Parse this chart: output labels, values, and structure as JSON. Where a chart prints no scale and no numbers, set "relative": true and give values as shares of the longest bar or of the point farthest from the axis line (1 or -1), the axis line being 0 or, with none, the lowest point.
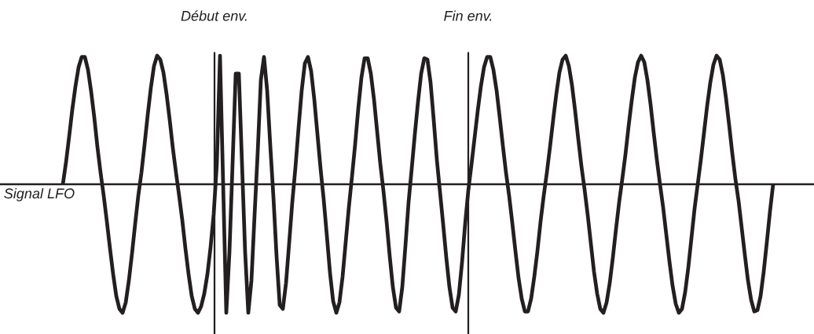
{
  "chart_data": {
    "type": "line",
    "relative": true,
    "line_style": "solid",
    "categories": [
      null,
      null,
      null,
      null,
      null,
      null,
      null,
      null,
      null,
      null,
      null,
      null,
      null,
      null,
      null,
      null,
      null,
      null,
      null,
      null,
      null,
      null,
      null,
      null,
      null,
      null,
      null,
      null,
      null,
      null,
      null,
      null,
      null,
      null,
      null,
      null,
      null,
      null,
      null,
      null,
      null,
      null,
      null,
      null,
      null,
      null,
      null,
      null,
      null,
      null,
      null,
      null,
      null,
      null,
      null,
      null,
      null,
      null,
      null,
      null,
      null,
      null,
      null,
      null,
      null,
      null,
      null,
      null,
      null,
      null,
      null,
      null,
      null,
      null,
      null,
      null,
      null,
      null,
      null,
      null,
      null,
      null,
      null,
      null,
      null,
      null,
      null,
      null,
      null,
      null,
      null,
      null,
      null,
      null,
      null,
      null,
      null,
      null,
      null,
      null,
      null,
      null,
      null,
      null,
      null,
      null,
      null,
      null,
      null,
      null,
      null,
      null,
      null,
      null,
      null,
      null,
      null,
      null,
      null,
      null,
      null,
      null,
      null,
      null,
      null,
      null,
      null,
      null,
      null,
      null,
      null,
      null,
      null,
      null,
      null,
      null,
      null,
      null,
      null,
      null,
      null,
      null,
      null,
      null,
      null,
      null,
      null,
      null,
      null,
      null,
      null,
      null,
      null,
      null,
      null,
      null,
      null,
      null,
      null,
      null,
      null,
      null,
      null,
      null,
      null,
      null,
      null,
      null,
      null,
      null,
      null,
      null,
      null,
      null,
      null,
      null,
      null,
      null,
      null,
      null,
      null,
      null,
      null,
      null,
      null,
      null,
      null,
      null,
      null,
      null,
      null,
      null,
      null,
      null,
      null,
      null,
      null,
      null,
      null,
      null,
      null,
      null,
      null,
      null,
      null,
      null,
      null,
      null,
      null,
      null,
      null,
      null,
      null,
      null,
      null,
      null,
      null,
      null,
      null,
      null,
      null,
      null,
      null,
      null,
      null,
      null,
      null
    ],
    "series": [
      {
        "name": "Signal LFO",
        "color": "#231f20",
        "values": [
          0.0,
          0.17,
          0.37,
          0.58,
          0.76,
          0.91,
          0.99,
          0.99,
          0.89,
          0.72,
          0.52,
          0.29,
          0.09,
          -0.09,
          -0.29,
          -0.5,
          -0.7,
          -0.87,
          -0.97,
          -1.0,
          -0.92,
          -0.75,
          -0.54,
          -0.31,
          -0.09,
          0.09,
          0.31,
          0.54,
          0.75,
          0.92,
          1.0,
          0.97,
          0.87,
          0.7,
          0.5,
          0.28,
          0.09,
          -0.09,
          -0.28,
          -0.5,
          -0.7,
          -0.87,
          -0.97,
          -1.0,
          -0.95,
          -0.85,
          -0.7,
          -0.49,
          -0.23,
          0.16,
          1.0,
          0.0,
          -1.0,
          -0.53,
          0.16,
          0.86,
          0.86,
          0.16,
          -0.53,
          -1.0,
          -0.75,
          -0.24,
          0.25,
          0.81,
          0.99,
          0.73,
          0.3,
          -0.1,
          -0.56,
          -0.94,
          -0.97,
          -0.77,
          -0.46,
          -0.14,
          0.13,
          0.44,
          0.73,
          0.94,
          0.99,
          0.88,
          0.66,
          0.39,
          0.12,
          -0.12,
          -0.4,
          -0.69,
          -0.91,
          -1.0,
          -0.92,
          -0.72,
          -0.45,
          -0.18,
          0.06,
          0.31,
          0.59,
          0.83,
          0.98,
          0.98,
          0.86,
          0.66,
          0.41,
          0.16,
          -0.05,
          -0.29,
          -0.56,
          -0.8,
          -0.96,
          -0.99,
          -0.8,
          -0.48,
          -0.14,
          0.12,
          0.39,
          0.64,
          0.86,
          0.98,
          0.97,
          0.79,
          0.5,
          0.19,
          -0.06,
          -0.31,
          -0.57,
          -0.8,
          -0.96,
          -0.99,
          -0.86,
          -0.61,
          -0.31,
          -0.05,
          0.15,
          0.36,
          0.57,
          0.76,
          0.91,
          0.99,
          0.99,
          0.89,
          0.73,
          0.52,
          0.3,
          0.09,
          -0.09,
          -0.3,
          -0.52,
          -0.73,
          -0.89,
          -0.99,
          -0.99,
          -0.89,
          -0.72,
          -0.52,
          -0.29,
          -0.09,
          0.09,
          0.29,
          0.5,
          0.7,
          0.87,
          0.97,
          1.0,
          0.92,
          0.77,
          0.57,
          0.35,
          0.14,
          -0.04,
          -0.24,
          -0.46,
          -0.68,
          -0.85,
          -0.97,
          -1.0,
          -0.92,
          -0.77,
          -0.57,
          -0.35,
          -0.14,
          0.04,
          0.23,
          0.45,
          0.65,
          0.83,
          0.95,
          1.0,
          0.95,
          0.81,
          0.62,
          0.4,
          0.19,
          0.0,
          -0.18,
          -0.39,
          -0.6,
          -0.79,
          -0.93,
          -1.0,
          -0.97,
          -0.84,
          -0.65,
          -0.42,
          -0.19,
          0.0,
          0.19,
          0.4,
          0.61,
          0.79,
          0.93,
          1.0,
          0.97,
          0.85,
          0.67,
          0.46,
          0.24,
          0.04,
          -0.13,
          -0.34,
          -0.55,
          -0.75,
          -0.9,
          -0.99,
          -0.98,
          -0.87,
          -0.68,
          -0.45,
          -0.21,
          0.0
        ]
      }
    ],
    "annotations": [
      "Début env.",
      "Fin env."
    ]
  }
}
